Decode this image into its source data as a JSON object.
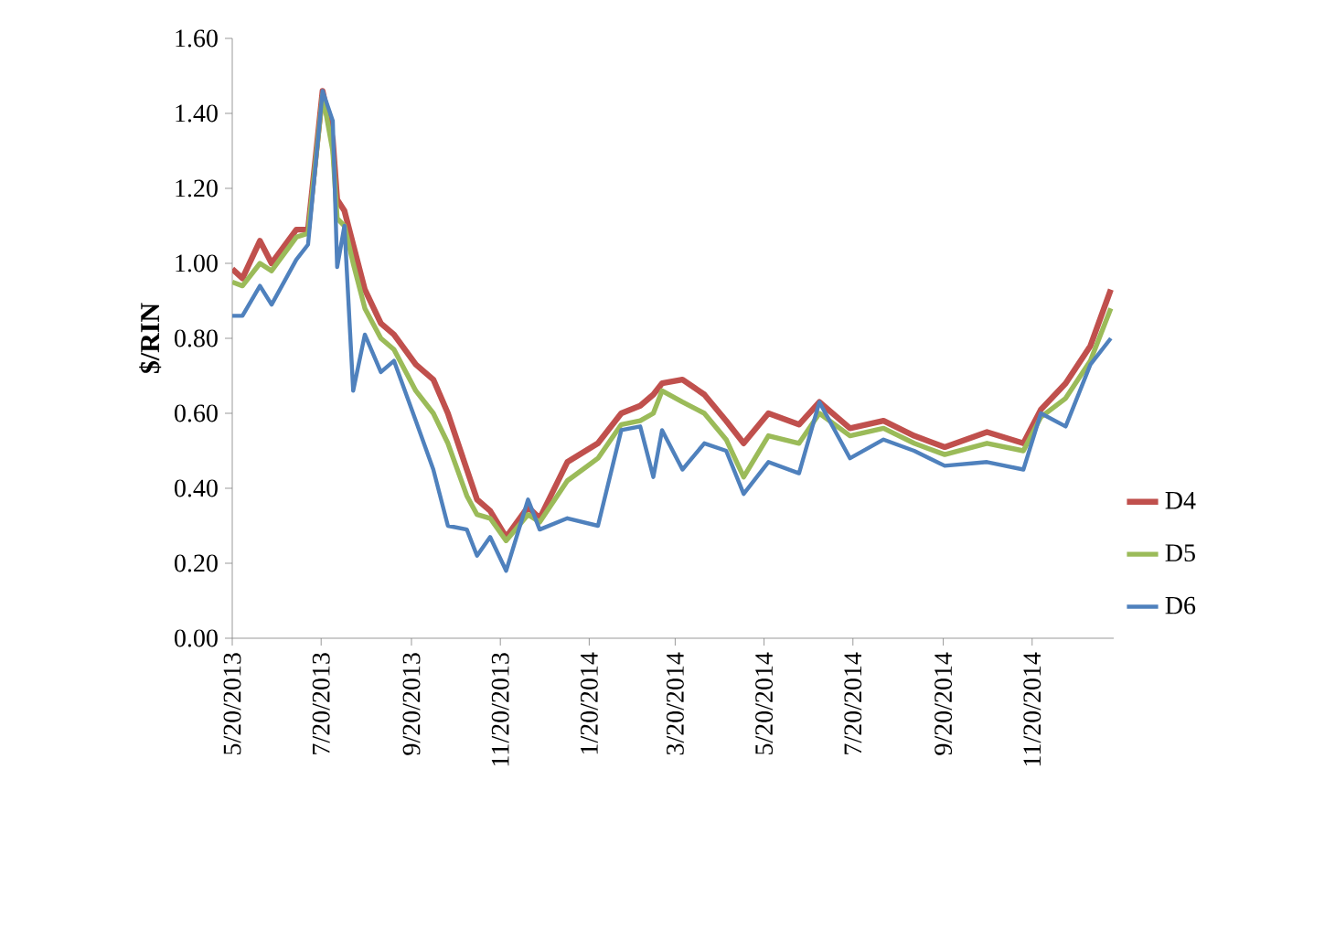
{
  "chart_data": {
    "type": "line",
    "ylabel": "$/RIN",
    "x": [
      "2013-05-20",
      "2013-05-27",
      "2013-06-08",
      "2013-06-16",
      "2013-07-03",
      "2013-07-11",
      "2013-07-21",
      "2013-07-28",
      "2013-07-31",
      "2013-08-05",
      "2013-08-11",
      "2013-08-19",
      "2013-08-30",
      "2013-09-08",
      "2013-09-23",
      "2013-10-05",
      "2013-10-15",
      "2013-10-28",
      "2013-11-04",
      "2013-11-13",
      "2013-11-24",
      "2013-12-09",
      "2013-12-17",
      "2014-01-05",
      "2014-01-26",
      "2014-02-11",
      "2014-02-24",
      "2014-03-05",
      "2014-03-11",
      "2014-03-25",
      "2014-04-09",
      "2014-04-24",
      "2014-05-06",
      "2014-05-23",
      "2014-06-13",
      "2014-06-27",
      "2014-07-18",
      "2014-08-10",
      "2014-08-31",
      "2014-09-21",
      "2014-10-20",
      "2014-11-14",
      "2014-11-26",
      "2014-12-13",
      "2014-12-30",
      "2015-01-13"
    ],
    "series": [
      {
        "name": "D4",
        "color": "#c0504d",
        "values": [
          0.985,
          0.96,
          1.06,
          1.0,
          1.09,
          1.09,
          1.46,
          1.33,
          1.17,
          1.14,
          1.05,
          0.93,
          0.84,
          0.81,
          0.73,
          0.69,
          0.6,
          0.45,
          0.37,
          0.34,
          0.27,
          0.35,
          0.32,
          0.47,
          0.52,
          0.6,
          0.62,
          0.65,
          0.68,
          0.69,
          0.65,
          0.58,
          0.52,
          0.6,
          0.57,
          0.63,
          0.56,
          0.58,
          0.54,
          0.51,
          0.55,
          0.52,
          0.61,
          0.68,
          0.78,
          0.93
        ]
      },
      {
        "name": "D5",
        "color": "#9bbb59",
        "values": [
          0.95,
          0.94,
          1.0,
          0.98,
          1.07,
          1.08,
          1.45,
          1.3,
          1.12,
          1.1,
          1.0,
          0.88,
          0.8,
          0.77,
          0.66,
          0.6,
          0.52,
          0.38,
          0.33,
          0.32,
          0.26,
          0.33,
          0.31,
          0.42,
          0.48,
          0.57,
          0.58,
          0.6,
          0.66,
          0.63,
          0.6,
          0.53,
          0.43,
          0.54,
          0.52,
          0.6,
          0.54,
          0.56,
          0.52,
          0.49,
          0.52,
          0.5,
          0.59,
          0.64,
          0.74,
          0.88
        ]
      },
      {
        "name": "D6",
        "color": "#4f81bd",
        "values": [
          0.86,
          0.86,
          0.94,
          0.89,
          1.01,
          1.05,
          1.46,
          1.38,
          0.99,
          1.1,
          0.66,
          0.81,
          0.71,
          0.74,
          0.58,
          0.45,
          0.3,
          0.29,
          0.22,
          0.27,
          0.18,
          0.37,
          0.29,
          0.32,
          0.3,
          0.555,
          0.565,
          0.43,
          0.555,
          0.45,
          0.52,
          0.5,
          0.385,
          0.47,
          0.44,
          0.63,
          0.48,
          0.53,
          0.5,
          0.46,
          0.47,
          0.45,
          0.6,
          0.565,
          0.73,
          0.8
        ]
      }
    ],
    "xlim": [
      "2013-05-20",
      "2015-01-15"
    ],
    "xticks": [
      {
        "value": "2013-05-20",
        "label": "5/20/2013"
      },
      {
        "value": "2013-07-20",
        "label": "7/20/2013"
      },
      {
        "value": "2013-09-20",
        "label": "9/20/2013"
      },
      {
        "value": "2013-11-20",
        "label": "11/20/2013"
      },
      {
        "value": "2014-01-20",
        "label": "1/20/2014"
      },
      {
        "value": "2014-03-20",
        "label": "3/20/2014"
      },
      {
        "value": "2014-05-20",
        "label": "5/20/2014"
      },
      {
        "value": "2014-07-20",
        "label": "7/20/2014"
      },
      {
        "value": "2014-09-20",
        "label": "9/20/2014"
      },
      {
        "value": "2014-11-20",
        "label": "11/20/2014"
      }
    ],
    "ylim": [
      0,
      1.6
    ],
    "yticks": [
      {
        "value": 0,
        "label": "0.00"
      },
      {
        "value": 0.2,
        "label": "0.20"
      },
      {
        "value": 0.4,
        "label": "0.40"
      },
      {
        "value": 0.6,
        "label": "0.60"
      },
      {
        "value": 0.8,
        "label": "0.80"
      },
      {
        "value": 1.0,
        "label": "1.00"
      },
      {
        "value": 1.2,
        "label": "1.20"
      },
      {
        "value": 1.4,
        "label": "1.40"
      },
      {
        "value": 1.6,
        "label": "1.60"
      }
    ],
    "grid": false,
    "legend": "right",
    "marker": "none",
    "line_style": "solid"
  }
}
